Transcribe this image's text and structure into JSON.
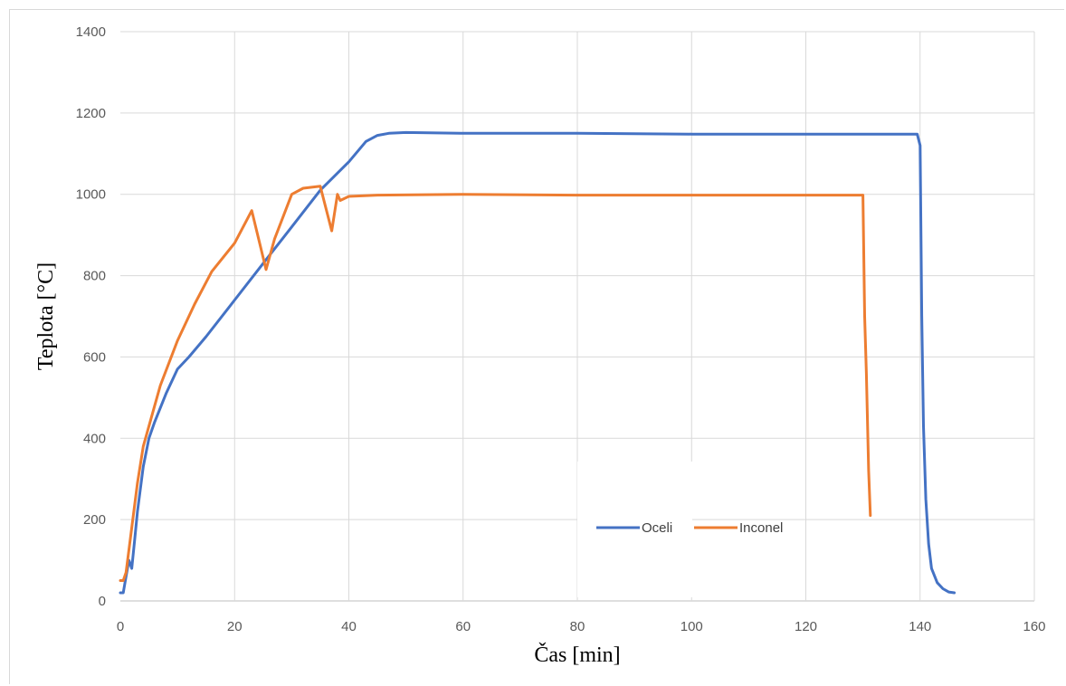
{
  "chart_data": {
    "type": "line",
    "xlabel": "Čas [min]",
    "ylabel": "Teplota [°C]",
    "xlim": [
      0,
      160
    ],
    "ylim": [
      0,
      1400
    ],
    "xticks": [
      0,
      20,
      40,
      60,
      80,
      100,
      120,
      140,
      160
    ],
    "yticks": [
      0,
      200,
      400,
      600,
      800,
      1000,
      1200,
      1400
    ],
    "grid": true,
    "legend_position": "inside-bottom-right",
    "series": [
      {
        "name": "Oceli",
        "color": "#4472C4",
        "x": [
          0,
          0.5,
          1,
          1.5,
          2,
          2.5,
          3,
          4,
          5,
          6,
          8,
          10,
          12,
          15,
          20,
          25,
          30,
          35,
          40,
          43,
          45,
          47,
          50,
          60,
          80,
          100,
          120,
          130,
          139.5,
          140,
          140.3,
          140.6,
          141,
          141.5,
          142,
          143,
          144,
          145,
          146
        ],
        "y": [
          20,
          20,
          60,
          100,
          80,
          150,
          220,
          330,
          400,
          440,
          510,
          570,
          600,
          650,
          740,
          830,
          920,
          1010,
          1080,
          1130,
          1145,
          1150,
          1152,
          1150,
          1150,
          1148,
          1148,
          1148,
          1148,
          1120,
          700,
          430,
          250,
          140,
          80,
          45,
          30,
          22,
          20
        ]
      },
      {
        "name": "Inconel",
        "color": "#ED7D31",
        "x": [
          0,
          0.5,
          1,
          2,
          3,
          4,
          5,
          7,
          10,
          13,
          16,
          20,
          23,
          25.5,
          27,
          30,
          32,
          35,
          37,
          38,
          38.5,
          40,
          45,
          60,
          80,
          100,
          120,
          130,
          130.3,
          130.6,
          131,
          131.3
        ],
        "y": [
          50,
          50,
          70,
          180,
          290,
          380,
          430,
          530,
          640,
          730,
          810,
          880,
          960,
          815,
          890,
          1000,
          1015,
          1020,
          910,
          1000,
          985,
          995,
          998,
          1000,
          998,
          998,
          998,
          998,
          700,
          560,
          320,
          210
        ]
      }
    ]
  }
}
